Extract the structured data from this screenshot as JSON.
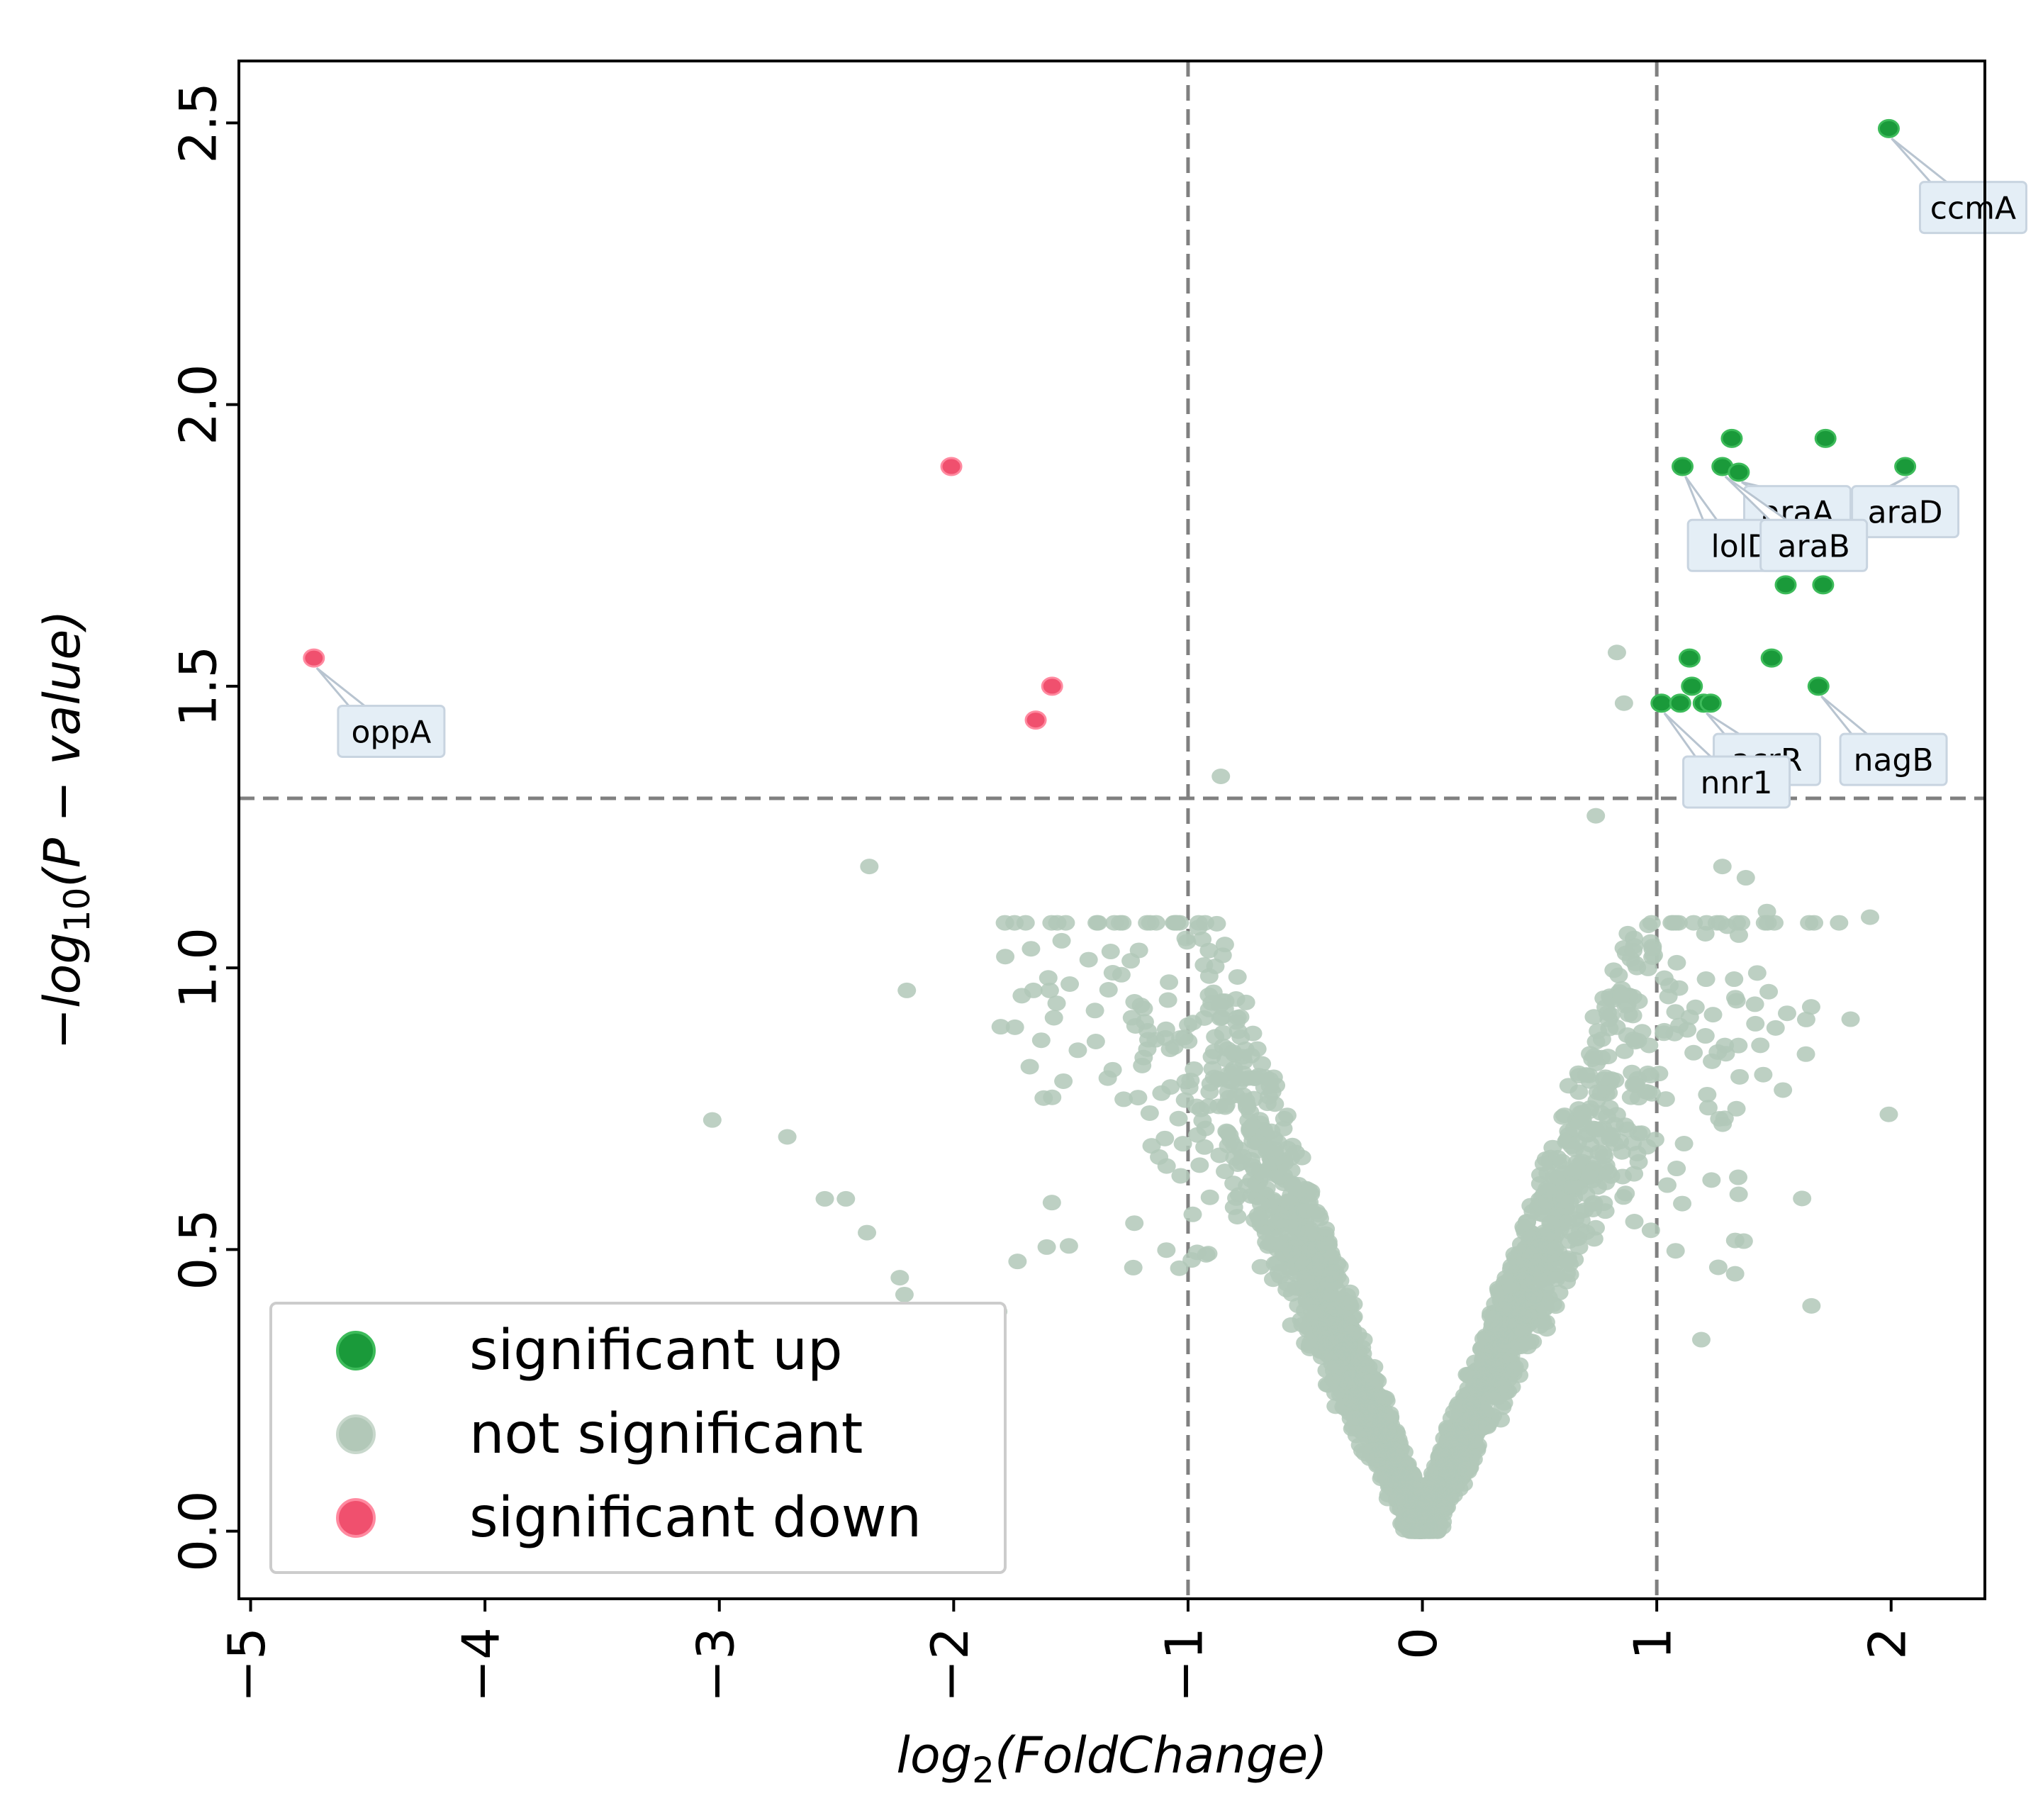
{
  "chart_data": {
    "type": "scatter",
    "title": "",
    "xlabel_parts": {
      "base": "log",
      "sub": "2",
      "rest": "(FoldChange)"
    },
    "ylabel_parts": {
      "prefix": "−log",
      "sub": "10",
      "rest": "(P − value)"
    },
    "xlim": [
      -5.05,
      2.4
    ],
    "ylim": [
      -0.12,
      2.61
    ],
    "xticks": [
      -5,
      -4,
      -3,
      -2,
      -1,
      0,
      1,
      2
    ],
    "xtick_labels": [
      "−5",
      "−4",
      "−3",
      "−2",
      "−1",
      "0",
      "1",
      "2"
    ],
    "yticks": [
      0.0,
      0.5,
      1.0,
      1.5,
      2.0,
      2.5
    ],
    "ytick_labels": [
      "0.0",
      "0.5",
      "1.0",
      "1.5",
      "2.0",
      "2.5"
    ],
    "thresholds": {
      "x": [
        -1,
        1
      ],
      "y": 1.301
    },
    "colors": {
      "up": "#1a9a3a",
      "not": "#b2c8b8",
      "down": "#f0506e",
      "threshold": "#808080"
    },
    "series": [
      {
        "name": "significant up",
        "points": [
          [
            1.99,
            2.49
          ],
          [
            1.32,
            1.94
          ],
          [
            1.72,
            1.94
          ],
          [
            1.11,
            1.89
          ],
          [
            1.28,
            1.89
          ],
          [
            1.35,
            1.88
          ],
          [
            2.06,
            1.89
          ],
          [
            1.55,
            1.68
          ],
          [
            1.71,
            1.68
          ],
          [
            1.14,
            1.55
          ],
          [
            1.49,
            1.55
          ],
          [
            1.15,
            1.5
          ],
          [
            1.69,
            1.5
          ],
          [
            1.02,
            1.47
          ],
          [
            1.1,
            1.47
          ],
          [
            1.2,
            1.47
          ],
          [
            1.23,
            1.47
          ]
        ]
      },
      {
        "name": "not significant",
        "seed": 20240611,
        "count": 2600,
        "points": [
          [
            0.83,
            1.56
          ],
          [
            0.86,
            1.47
          ],
          [
            -0.86,
            1.34
          ],
          [
            0.74,
            1.27
          ],
          [
            -2.36,
            1.18
          ],
          [
            1.28,
            1.18
          ],
          [
            1.38,
            1.16
          ],
          [
            -1.78,
            1.02
          ],
          [
            -1.59,
            0.96
          ],
          [
            -1.66,
            0.96
          ],
          [
            -2.2,
            0.96
          ],
          [
            -3.03,
            0.73
          ],
          [
            -2.71,
            0.7
          ],
          [
            -2.55,
            0.59
          ],
          [
            -2.46,
            0.59
          ],
          [
            -2.37,
            0.53
          ],
          [
            -2.23,
            0.45
          ],
          [
            -2.21,
            0.42
          ],
          [
            -1.81,
            0.39
          ],
          [
            -1.98,
            0.37
          ],
          [
            1.91,
            1.09
          ],
          [
            1.47,
            1.1
          ],
          [
            1.99,
            0.74
          ],
          [
            1.66,
            0.4
          ],
          [
            1.13,
            0.89
          ],
          [
            1.19,
            0.34
          ],
          [
            1.33,
            0.98
          ],
          [
            1.21,
            0.98
          ],
          [
            1.34,
            0.75
          ],
          [
            1.36,
            1.08
          ]
        ]
      },
      {
        "name": "significant down",
        "points": [
          [
            -4.73,
            1.55
          ],
          [
            -2.01,
            1.89
          ],
          [
            -1.58,
            1.5
          ],
          [
            -1.65,
            1.44
          ]
        ]
      }
    ],
    "annotations": [
      {
        "text": "ccmA",
        "point": [
          1.99,
          2.49
        ],
        "pos": [
          2.35,
          2.35
        ]
      },
      {
        "text": "araA",
        "point": [
          1.35,
          1.88
        ],
        "pos": [
          1.6,
          1.81
        ]
      },
      {
        "text": "araD",
        "point": [
          2.06,
          1.89
        ],
        "pos": [
          2.06,
          1.81
        ]
      },
      {
        "text": "lolD",
        "point": [
          1.11,
          1.89
        ],
        "pos": [
          1.36,
          1.75
        ]
      },
      {
        "text": "araB",
        "point": [
          1.28,
          1.89
        ],
        "pos": [
          1.67,
          1.75
        ]
      },
      {
        "text": "oppA",
        "point": [
          -4.73,
          1.55
        ],
        "pos": [
          -4.4,
          1.42
        ]
      },
      {
        "text": "acrR",
        "point": [
          1.2,
          1.47
        ],
        "pos": [
          1.47,
          1.37
        ]
      },
      {
        "text": "nagB",
        "point": [
          1.69,
          1.5
        ],
        "pos": [
          2.01,
          1.37
        ]
      },
      {
        "text": "nnr1",
        "point": [
          1.02,
          1.47
        ],
        "pos": [
          1.34,
          1.33
        ]
      }
    ],
    "legend": {
      "location": "lower-left",
      "entries": [
        "significant up",
        "not significant",
        "significant down"
      ]
    }
  }
}
